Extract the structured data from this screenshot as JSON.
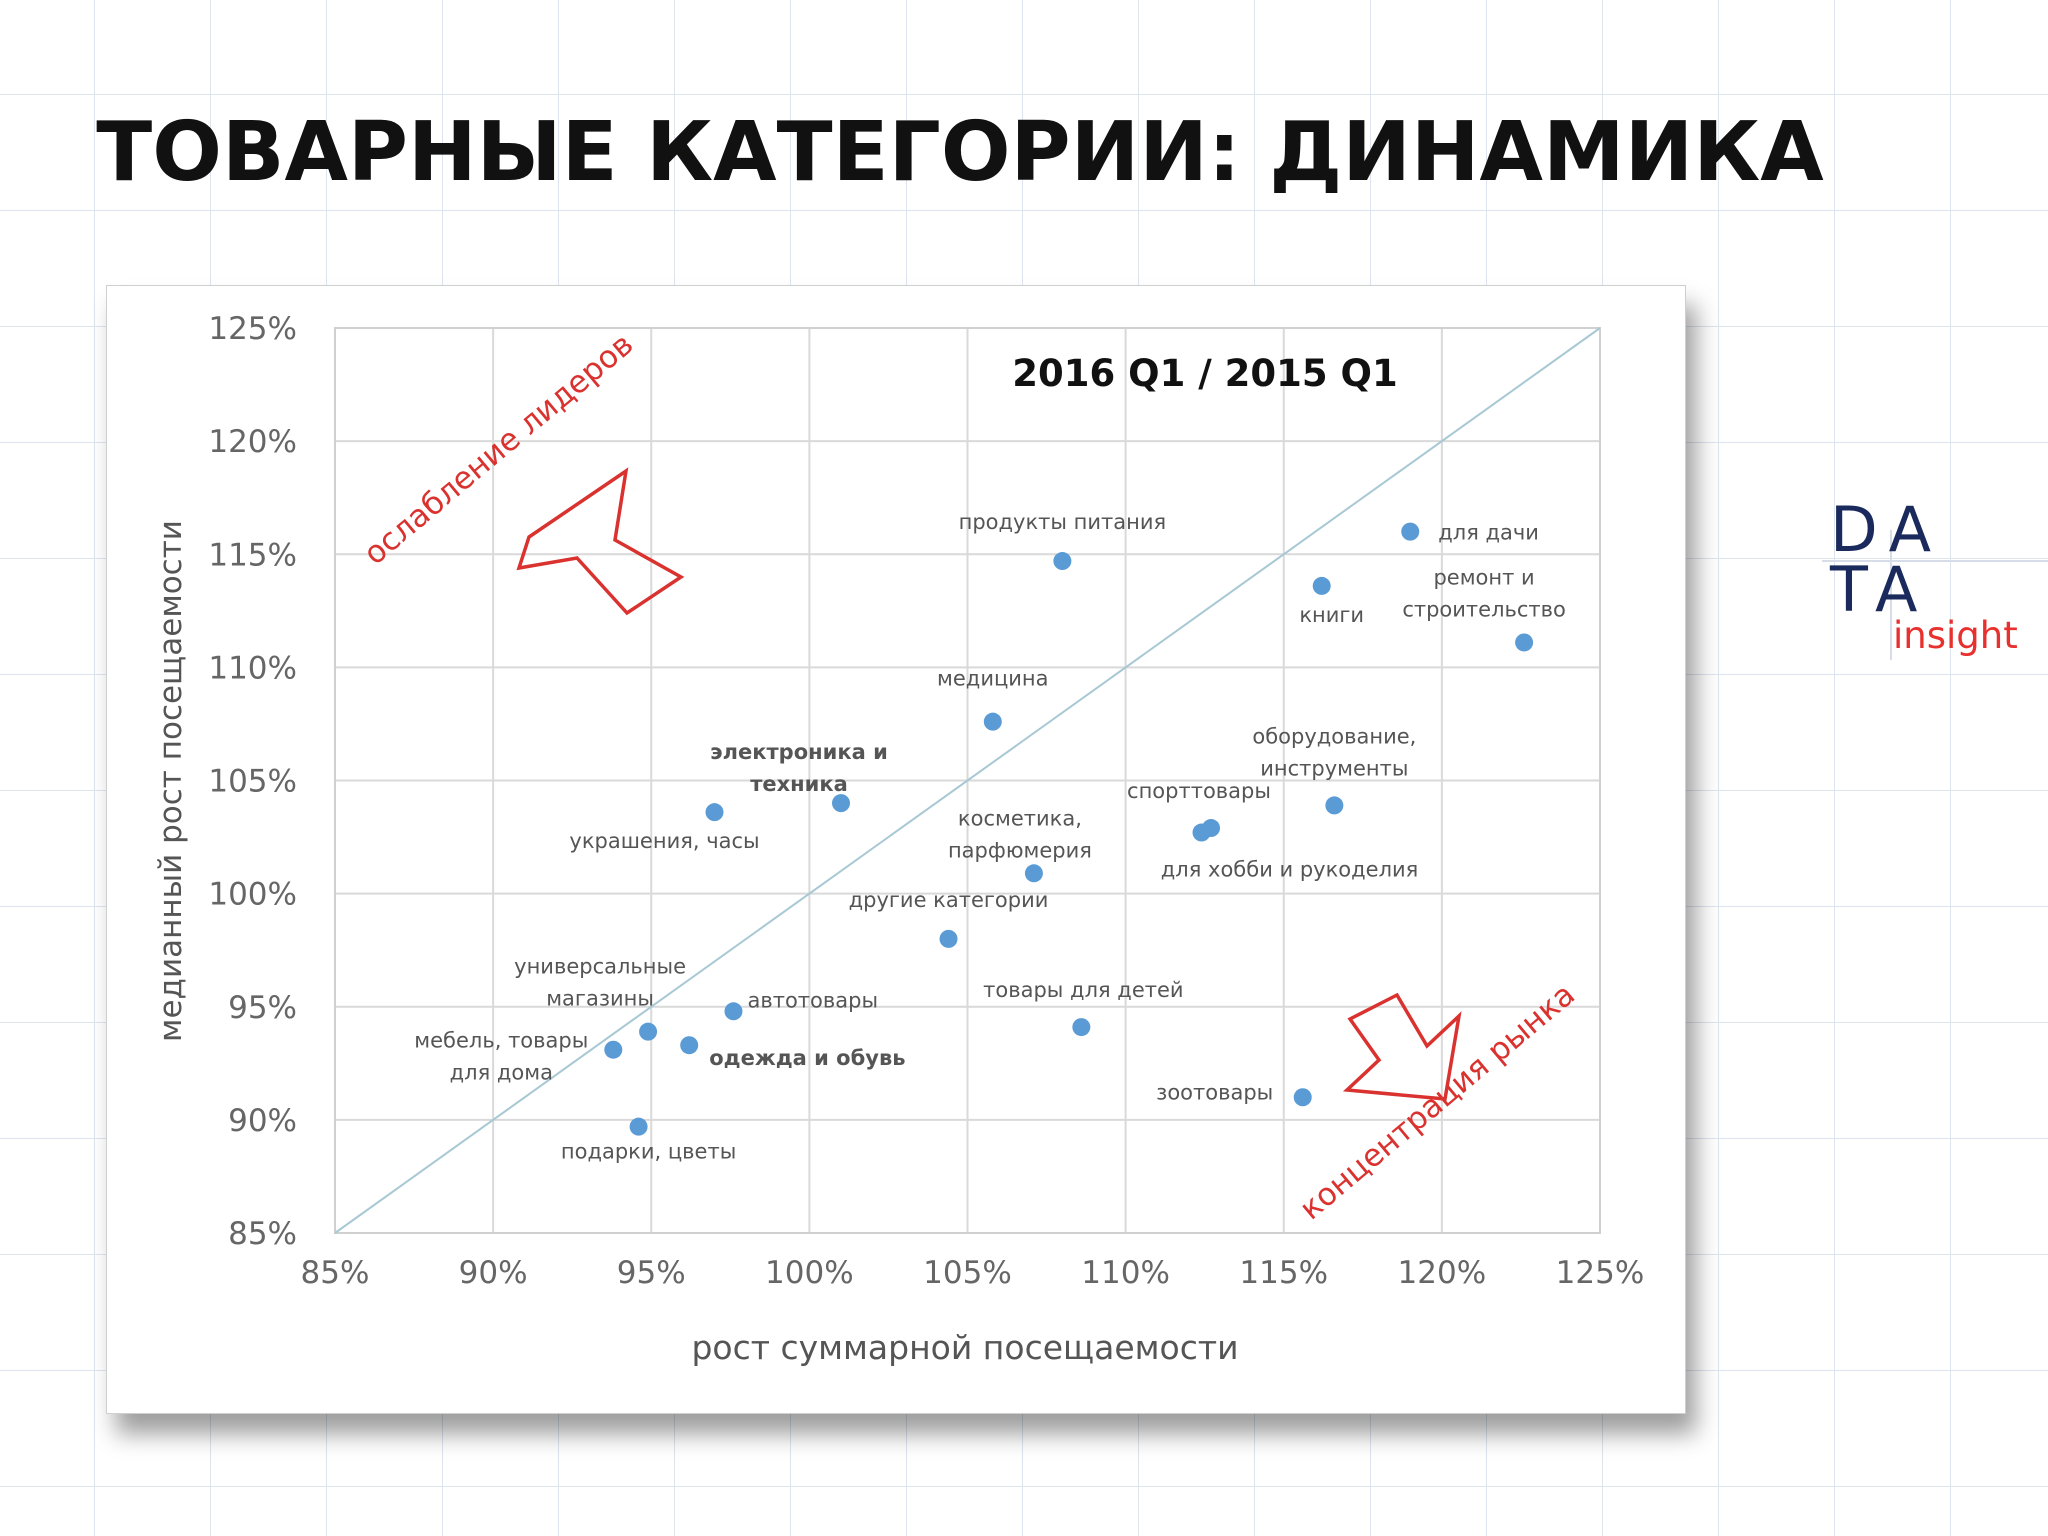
{
  "slide": {
    "title": "ТОВАРНЫЕ КАТЕГОРИИ: ДИНАМИКА"
  },
  "logo": {
    "line1": "DA",
    "line2": "TA",
    "word": "insight"
  },
  "chart_data": {
    "type": "scatter",
    "title": "2016 Q1 / 2015 Q1",
    "xlabel": "рост суммарной посещаемости",
    "ylabel": "медианный рост посещаемости",
    "xlim": [
      85,
      125
    ],
    "ylim": [
      85,
      125
    ],
    "x_ticks": [
      "85%",
      "90%",
      "95%",
      "100%",
      "105%",
      "110%",
      "115%",
      "120%",
      "125%"
    ],
    "y_ticks": [
      "125%",
      "120%",
      "115%",
      "110%",
      "105%",
      "100%",
      "95%",
      "90%",
      "85%"
    ],
    "grid": true,
    "diagonal": true,
    "point_color": "#5b9bd5",
    "points": [
      {
        "label": "продукты питания",
        "x": 108.0,
        "y": 114.7
      },
      {
        "label": "для дачи",
        "x": 119.0,
        "y": 116.0
      },
      {
        "label": "книги",
        "x": 116.2,
        "y": 113.6
      },
      {
        "label": "ремонт и строительство",
        "x": 122.6,
        "y": 111.1
      },
      {
        "label": "медицина",
        "x": 105.8,
        "y": 107.6
      },
      {
        "label": "электроника и техника",
        "x": 101.0,
        "y": 104.0
      },
      {
        "label": "украшения, часы",
        "x": 97.0,
        "y": 103.6
      },
      {
        "label": "оборудование, инструменты",
        "x": 116.6,
        "y": 103.9
      },
      {
        "label": "спорттовары",
        "x": 112.7,
        "y": 102.9
      },
      {
        "label": "для хобби и рукоделия",
        "x": 112.4,
        "y": 102.7
      },
      {
        "label": "косметика, парфюмерия",
        "x": 107.1,
        "y": 100.9
      },
      {
        "label": "другие категории",
        "x": 104.4,
        "y": 98.0
      },
      {
        "label": "универсальные магазины",
        "x": 94.9,
        "y": 93.9
      },
      {
        "label": "автотовары",
        "x": 97.6,
        "y": 94.8
      },
      {
        "label": "мебель, товары для дома",
        "x": 93.8,
        "y": 93.1
      },
      {
        "label": "одежда и обувь",
        "x": 96.2,
        "y": 93.3
      },
      {
        "label": "товары для детей",
        "x": 108.6,
        "y": 94.1
      },
      {
        "label": "зоотовары",
        "x": 115.6,
        "y": 91.0
      },
      {
        "label": "подарки, цветы",
        "x": 94.6,
        "y": 89.7
      }
    ],
    "annotations": [
      {
        "text": "ослабление лидеров",
        "color": "#d9322f"
      },
      {
        "text": "концентрация рынка",
        "color": "#d9322f"
      }
    ]
  }
}
